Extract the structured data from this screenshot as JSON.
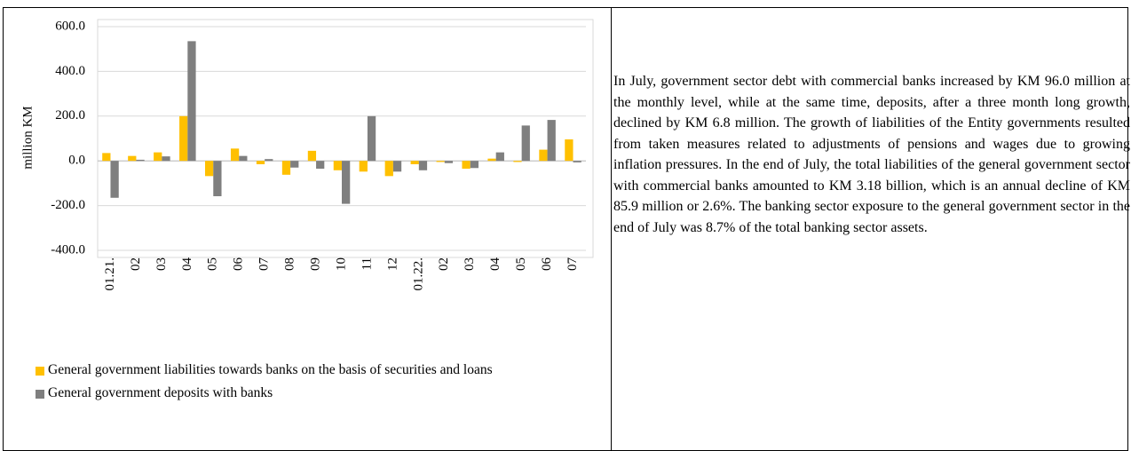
{
  "chart_data": {
    "type": "bar",
    "y_label": "million KM",
    "categories": [
      "01.21.",
      "02",
      "03",
      "04",
      "05",
      "06",
      "07",
      "08",
      "09",
      "10",
      "11",
      "12",
      "01.22.",
      "02",
      "03",
      "04",
      "05",
      "06",
      "07"
    ],
    "series": [
      {
        "name": "General government liabilities towards banks on the basis of securities and loans",
        "color": "#ffc000",
        "values": [
          35,
          22,
          38,
          200,
          -68,
          55,
          -15,
          -62,
          45,
          -42,
          -48,
          -68,
          -15,
          -5,
          -35,
          10,
          -5,
          50,
          96
        ]
      },
      {
        "name": "General government deposits with banks",
        "color": "#7f7f7f",
        "values": [
          -165,
          5,
          20,
          535,
          -158,
          22,
          8,
          -30,
          -35,
          -192,
          200,
          -48,
          -42,
          -10,
          -32,
          38,
          158,
          183,
          -6.8
        ]
      }
    ],
    "ylim": [
      -400,
      600
    ],
    "yticks": [
      {
        "value": -400,
        "label": "-400.0"
      },
      {
        "value": -200,
        "label": "-200.0"
      },
      {
        "value": 0,
        "label": "0.0"
      },
      {
        "value": 200,
        "label": "200.0"
      },
      {
        "value": 400,
        "label": "400.0"
      },
      {
        "value": 600,
        "label": "600.0"
      }
    ],
    "grid": true
  },
  "text": "In July, government sector debt with commercial banks increased by KM 96.0 million at the monthly level, while at the same time, deposits, after a three month long growth, declined by KM 6.8 million. The growth of liabilities of the Entity governments resulted from taken measures related to adjustments of pensions and wages due to growing inflation pressures. In the end of July, the total liabilities of the general government sector with commercial banks amounted to KM 3.18 billion, which is an annual decline of KM 85.9 million or 2.6%. The banking sector exposure to the general government sector in the end of July was 8.7% of the total banking sector assets."
}
